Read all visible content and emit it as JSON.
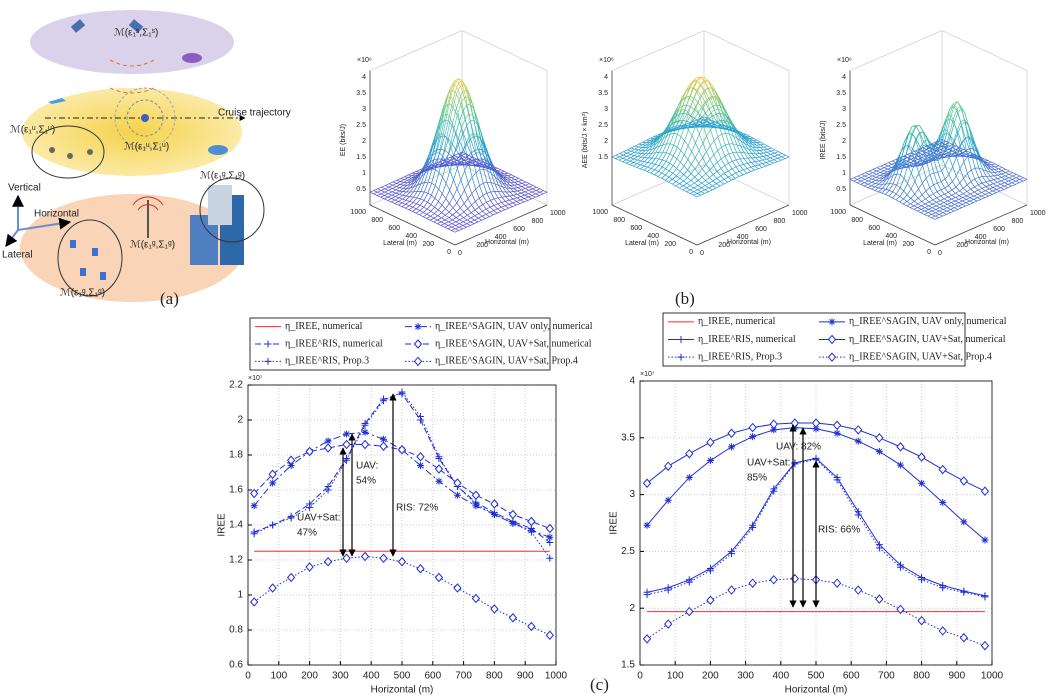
{
  "panel_a": {
    "caption": "(a)",
    "cruise_label": "Cruise trajectory",
    "axes": [
      "Vertical",
      "Horizontal",
      "Lateral"
    ],
    "model_labels": [
      "ℳ(ε₁ˢ,Σ₁ˢ)",
      "ℳ(ε₁ᵘ,Σ₁ᵘ)",
      "ℳ(ε₁ᵘ,Σ₁ᵘ)",
      "ℳ(ε₁ᵍ,Σ₁ᵍ)",
      "ℳ(ε₁ᵍ,Σ₁ᵍ)",
      "ℳ(ε₁ᵍ,Σ₁ᵍ)"
    ]
  },
  "panel_b": {
    "caption": "(b)",
    "plots": [
      {
        "z_label": "EE (bits/J)",
        "exponent": "×10⁶",
        "z_ticks": [
          0.5,
          1,
          1.5,
          2,
          2.5,
          3,
          3.5,
          4
        ],
        "lateral_label": "Lateral (m)",
        "lateral_ticks": [
          1000,
          800,
          600,
          400,
          200,
          0
        ],
        "horizontal_label": "Horizontal (m)",
        "horizontal_ticks": [
          0,
          200,
          400,
          600,
          800,
          1000
        ]
      },
      {
        "z_label": "AEE (bits/J × km³)",
        "exponent": "×10⁶",
        "z_ticks": [
          1.5,
          2,
          2.5,
          3,
          3.5,
          4
        ],
        "lateral_label": "Lateral (m)",
        "lateral_ticks": [
          1000,
          800,
          600,
          400,
          200,
          0
        ],
        "horizontal_label": "Horizontal (m)",
        "horizontal_ticks": [
          0,
          200,
          400,
          600,
          800,
          1000
        ]
      },
      {
        "z_label": "IREE (bits/J)",
        "exponent": "×10⁶",
        "z_ticks": [
          0.5,
          1,
          1.5,
          2,
          2.5,
          3,
          3.5,
          4
        ],
        "lateral_label": "Lateral (m)",
        "lateral_ticks": [
          1000,
          800,
          600,
          400,
          200,
          0
        ],
        "horizontal_label": "Horizontal (m)",
        "horizontal_ticks": [
          0,
          200,
          400,
          600,
          800,
          1000
        ]
      }
    ]
  },
  "caption_c": "(c)",
  "chart_data": [
    {
      "type": "line",
      "x_label": "Horizontal (m)",
      "y_label": "IREE",
      "y_exponent": "×10⁷",
      "x": [
        20,
        80,
        140,
        200,
        260,
        320,
        380,
        440,
        500,
        560,
        620,
        680,
        740,
        800,
        860,
        920,
        980
      ],
      "xlim": [
        0,
        1000
      ],
      "xticks": [
        0,
        100,
        200,
        300,
        400,
        500,
        600,
        700,
        800,
        900,
        1000
      ],
      "ylim": [
        0.6,
        2.2
      ],
      "yticks": [
        0.6,
        0.8,
        1,
        1.2,
        1.4,
        1.6,
        1.8,
        2,
        2.2
      ],
      "grid": true,
      "series": [
        {
          "name": "η_IREE, numerical",
          "color": "#ff2a2a",
          "dash": "solid",
          "marker": "none",
          "values": [
            1.25,
            1.25,
            1.25,
            1.25,
            1.25,
            1.25,
            1.25,
            1.25,
            1.25,
            1.25,
            1.25,
            1.25,
            1.25,
            1.25,
            1.25,
            1.25,
            1.25
          ]
        },
        {
          "name": "η_IREE^RIS, numerical",
          "color": "#1f2fd6",
          "dash": "dashed",
          "marker": "plus",
          "values": [
            1.36,
            1.4,
            1.45,
            1.52,
            1.62,
            1.78,
            1.98,
            2.12,
            2.15,
            2.0,
            1.78,
            1.62,
            1.53,
            1.47,
            1.42,
            1.38,
            1.3
          ]
        },
        {
          "name": "η_IREE^RIS, Prop.3",
          "color": "#1f2fd6",
          "dash": "dotted",
          "marker": "plus",
          "values": [
            1.35,
            1.4,
            1.44,
            1.5,
            1.6,
            1.77,
            1.97,
            2.11,
            2.16,
            2.02,
            1.79,
            1.62,
            1.52,
            1.46,
            1.41,
            1.36,
            1.21
          ]
        },
        {
          "name": "η_IREE^SAGIN, UAV only, numerical",
          "color": "#1f2fd6",
          "dash": "dashdot",
          "marker": "star",
          "values": [
            1.51,
            1.64,
            1.74,
            1.82,
            1.88,
            1.92,
            1.93,
            1.89,
            1.83,
            1.74,
            1.65,
            1.57,
            1.51,
            1.46,
            1.41,
            1.37,
            1.33
          ]
        },
        {
          "name": "η_IREE^SAGIN, UAV+Sat, numerical",
          "color": "#1f2fd6",
          "dash": "dashed",
          "marker": "diamond",
          "values": [
            1.58,
            1.69,
            1.77,
            1.82,
            1.84,
            1.86,
            1.86,
            1.85,
            1.83,
            1.79,
            1.72,
            1.64,
            1.57,
            1.52,
            1.46,
            1.42,
            1.38
          ]
        },
        {
          "name": "η_IREE^SAGIN, UAV+Sat, Prop.4",
          "color": "#1f2fd6",
          "dash": "dotted",
          "marker": "diamond",
          "values": [
            0.96,
            1.04,
            1.1,
            1.16,
            1.19,
            1.21,
            1.22,
            1.21,
            1.19,
            1.15,
            1.1,
            1.04,
            0.98,
            0.92,
            0.87,
            0.82,
            0.77
          ]
        }
      ],
      "annotations": [
        "UAV:",
        "54%",
        "UAV+Sat:",
        "47%",
        "RIS: 72%"
      ]
    },
    {
      "type": "line",
      "x_label": "Horizontal (m)",
      "y_label": "IREE",
      "y_exponent": "×10⁷",
      "x": [
        20,
        80,
        140,
        200,
        260,
        320,
        380,
        440,
        500,
        560,
        620,
        680,
        740,
        800,
        860,
        920,
        980
      ],
      "xlim": [
        0,
        1000
      ],
      "xticks": [
        0,
        100,
        200,
        300,
        400,
        500,
        600,
        700,
        800,
        900,
        1000
      ],
      "ylim": [
        1.5,
        4
      ],
      "yticks": [
        1.5,
        2,
        2.5,
        3,
        3.5,
        4
      ],
      "grid": true,
      "series": [
        {
          "name": "η_IREE, numerical",
          "color": "#ff2a2a",
          "dash": "solid",
          "marker": "none",
          "values": [
            1.97,
            1.97,
            1.97,
            1.97,
            1.97,
            1.97,
            1.97,
            1.97,
            1.97,
            1.97,
            1.97,
            1.97,
            1.97,
            1.97,
            1.97,
            1.97,
            1.97
          ]
        },
        {
          "name": "η_IREE^RIS, numerical",
          "color": "#1f2fd6",
          "dash": "solid",
          "marker": "plus",
          "values": [
            2.14,
            2.18,
            2.25,
            2.35,
            2.5,
            2.73,
            3.05,
            3.28,
            3.32,
            3.15,
            2.85,
            2.56,
            2.38,
            2.27,
            2.2,
            2.15,
            2.11
          ]
        },
        {
          "name": "η_IREE^RIS, Prop.3",
          "color": "#1f2fd6",
          "dash": "dotted",
          "marker": "plus",
          "values": [
            2.12,
            2.16,
            2.23,
            2.33,
            2.48,
            2.71,
            3.03,
            3.27,
            3.31,
            3.13,
            2.82,
            2.53,
            2.36,
            2.25,
            2.18,
            2.14,
            2.1
          ]
        },
        {
          "name": "η_IREE^SAGIN, UAV only, numerical",
          "color": "#1f2fd6",
          "dash": "solid",
          "marker": "star",
          "values": [
            2.73,
            2.95,
            3.15,
            3.3,
            3.42,
            3.51,
            3.57,
            3.59,
            3.58,
            3.54,
            3.47,
            3.38,
            3.26,
            3.1,
            2.93,
            2.76,
            2.6
          ]
        },
        {
          "name": "η_IREE^SAGIN, UAV+Sat, numerical",
          "color": "#1f2fd6",
          "dash": "solid",
          "marker": "diamond",
          "values": [
            3.1,
            3.25,
            3.36,
            3.46,
            3.54,
            3.59,
            3.62,
            3.63,
            3.63,
            3.61,
            3.57,
            3.5,
            3.42,
            3.33,
            3.22,
            3.12,
            3.03
          ]
        },
        {
          "name": "η_IREE^SAGIN, UAV+Sat, Prop.4",
          "color": "#1f2fd6",
          "dash": "dotted",
          "marker": "diamond",
          "values": [
            1.73,
            1.86,
            1.97,
            2.07,
            2.16,
            2.22,
            2.25,
            2.26,
            2.25,
            2.22,
            2.16,
            2.08,
            1.99,
            1.89,
            1.8,
            1.74,
            1.67
          ]
        }
      ],
      "annotations": [
        "UAV: 82%",
        "UAV+Sat:",
        "85%",
        "RIS: 66%"
      ]
    }
  ]
}
